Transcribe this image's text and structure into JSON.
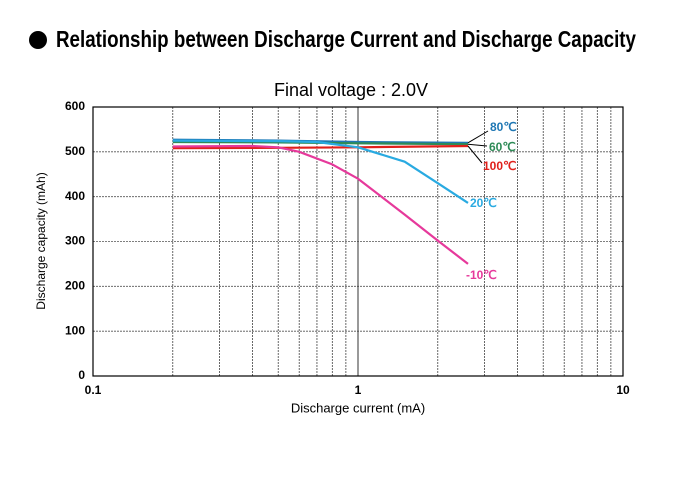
{
  "header": {
    "title": "Relationship between Discharge Current and Discharge Capacity"
  },
  "chart_data": {
    "type": "line",
    "title": "Final voltage : 2.0V",
    "x_label": "Discharge current (mA)",
    "y_label": "Discharge capacity (mAh)",
    "x_log": true,
    "xlim": [
      0.1,
      10
    ],
    "xticks": [
      0.1,
      1,
      10
    ],
    "x_minor_ticks": [
      0.2,
      0.3,
      0.4,
      0.5,
      0.6,
      0.7,
      0.8,
      0.9,
      2,
      3,
      4,
      5,
      6,
      7,
      8,
      9
    ],
    "ylim": [
      0,
      600
    ],
    "yticks": [
      0,
      100,
      200,
      300,
      400,
      500,
      600
    ],
    "grid": true,
    "series": [
      {
        "name": "80℃",
        "color": "#1f77b4",
        "x": [
          0.2,
          0.5,
          1,
          2.6
        ],
        "values": [
          527,
          525,
          522,
          520
        ]
      },
      {
        "name": "60℃",
        "color": "#2e8b57",
        "x": [
          0.2,
          0.5,
          1,
          2.6
        ],
        "values": [
          522,
          521,
          519,
          517
        ]
      },
      {
        "name": "100℃",
        "color": "#e0201b",
        "x": [
          0.2,
          0.5,
          1,
          2.6
        ],
        "values": [
          508,
          509,
          510,
          513
        ]
      },
      {
        "name": "20℃",
        "color": "#29aae1",
        "x": [
          0.2,
          0.5,
          0.7,
          1,
          1.5,
          2,
          2.6
        ],
        "values": [
          525,
          524,
          522,
          510,
          478,
          430,
          386
        ]
      },
      {
        "name": "-10℃",
        "color": "#e6399b",
        "x": [
          0.2,
          0.4,
          0.5,
          0.6,
          0.8,
          1,
          1.5,
          2,
          2.6
        ],
        "values": [
          512,
          513,
          510,
          500,
          472,
          440,
          360,
          302,
          250
        ]
      }
    ]
  }
}
